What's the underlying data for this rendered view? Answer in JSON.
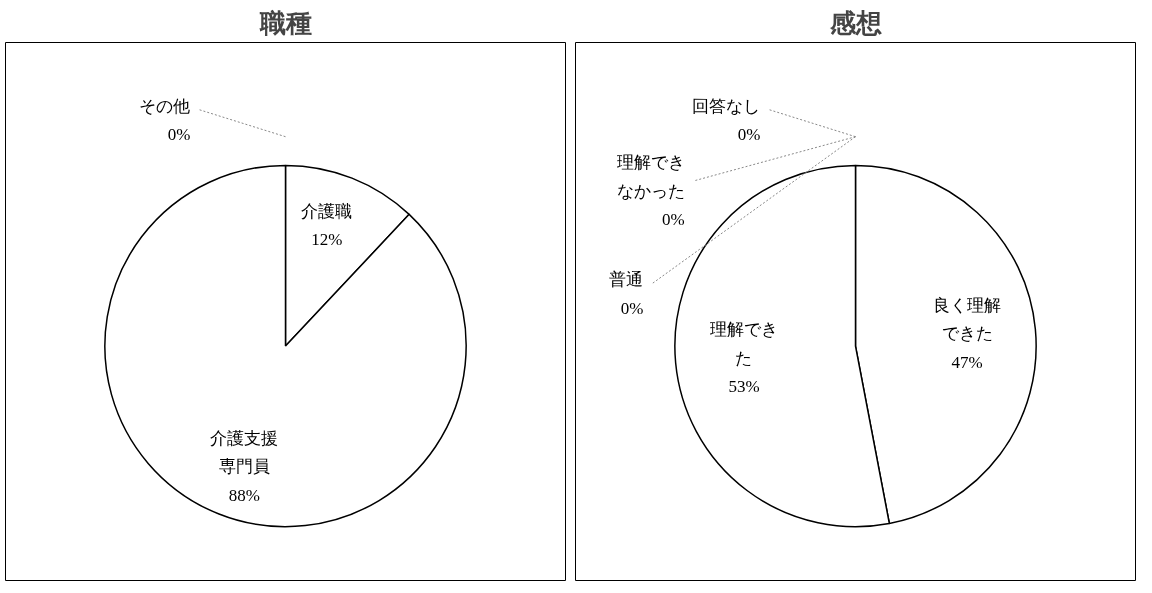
{
  "chart_data": [
    {
      "type": "pie",
      "title": "職種",
      "categories": [
        "介護職",
        "介護支援専門員",
        "その他"
      ],
      "values": [
        12,
        88,
        0
      ],
      "colors": [
        "#ffffff",
        "#ffffff",
        "#ffffff"
      ],
      "value_labels": [
        "12%",
        "88%",
        "0%"
      ]
    },
    {
      "type": "pie",
      "title": "感想",
      "categories": [
        "良く理解できた",
        "理解できた",
        "普通",
        "理解できなかった",
        "回答なし"
      ],
      "values": [
        47,
        53,
        0,
        0,
        0
      ],
      "colors": [
        "#ffffff",
        "#ffffff",
        "#ffffff",
        "#ffffff",
        "#ffffff"
      ],
      "value_labels": [
        "47%",
        "53%",
        "0%",
        "0%",
        "0%"
      ]
    }
  ]
}
